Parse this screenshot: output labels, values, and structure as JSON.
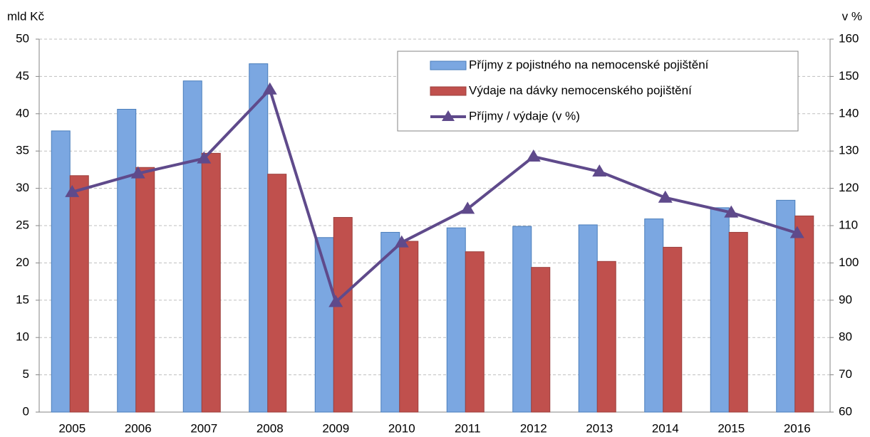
{
  "chart_data": {
    "type": "bar_line",
    "y_label": "mld Kč",
    "y2_label": "v %",
    "categories": [
      "2005",
      "2006",
      "2007",
      "2008",
      "2009",
      "2010",
      "2011",
      "2012",
      "2013",
      "2014",
      "2015",
      "2016"
    ],
    "series": [
      {
        "name": "Příjmy z pojistného na nemocenské pojištění",
        "type": "bar",
        "color": "#7ba7e1",
        "values": [
          37.7,
          40.6,
          44.4,
          46.7,
          23.4,
          24.1,
          24.7,
          24.9,
          25.1,
          25.9,
          27.4,
          28.4
        ]
      },
      {
        "name": "Výdaje na dávky nemocenského pojištění",
        "type": "bar",
        "color": "#c0504d",
        "values": [
          31.7,
          32.8,
          34.7,
          31.9,
          26.1,
          22.9,
          21.5,
          19.4,
          20.2,
          22.1,
          24.1,
          26.3
        ]
      },
      {
        "name": "Příjmy / výdaje (v %)",
        "type": "line",
        "axis": "y2",
        "color": "#5f4a8b",
        "values": [
          119,
          124,
          128,
          146.5,
          89.5,
          105.5,
          114.5,
          128.5,
          124.5,
          117.5,
          113.5,
          108
        ]
      }
    ],
    "ylim": [
      0,
      50
    ],
    "yticks": [
      0,
      5,
      10,
      15,
      20,
      25,
      30,
      35,
      40,
      45,
      50
    ],
    "y2lim": [
      60,
      160
    ],
    "y2ticks": [
      60,
      70,
      80,
      90,
      100,
      110,
      120,
      130,
      140,
      150,
      160
    ],
    "grid": true,
    "legend": "top-right"
  }
}
